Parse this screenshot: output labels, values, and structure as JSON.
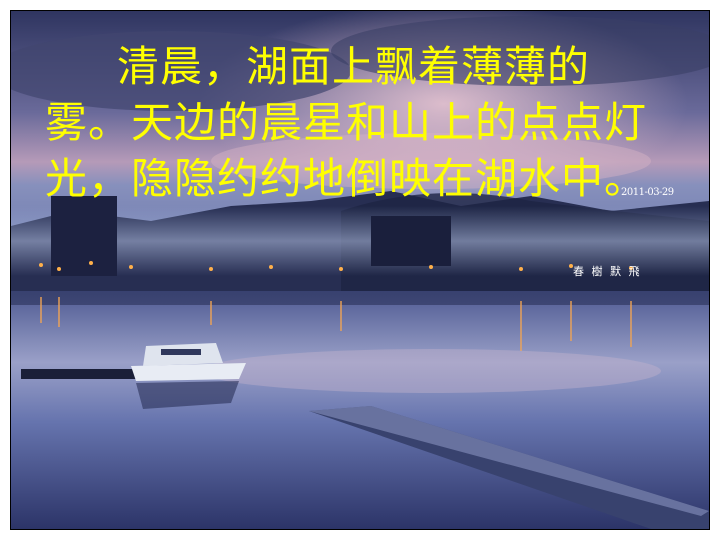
{
  "slide": {
    "text": "清晨，湖面上飘着薄薄的雾。天边的晨星和山上的点点灯光，隐隐约约地倒映在湖水中。",
    "date_stamp": "2011-03-29",
    "signature": "春 樹 默 飛"
  },
  "colors": {
    "text": "#ffff00",
    "sky_top": "#3a3f6e",
    "sky_glow": "#c48fa8",
    "water": "#5a6aa8"
  }
}
